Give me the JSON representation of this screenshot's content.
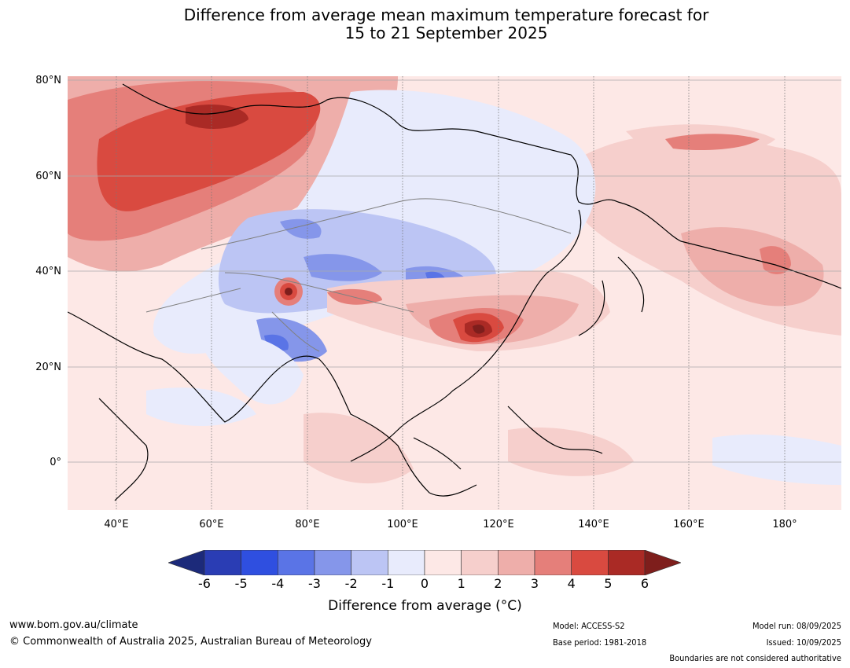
{
  "title_line1": "Difference from average mean maximum temperature forecast for",
  "title_line2": "15 to 21 September 2025",
  "lat_labels": [
    "80°N",
    "60°N",
    "40°N",
    "20°N",
    "0°"
  ],
  "lon_labels": [
    "40°E",
    "60°E",
    "80°E",
    "100°E",
    "120°E",
    "140°E",
    "160°E",
    "180°"
  ],
  "colorbar": {
    "ticks": [
      "-6",
      "-5",
      "-4",
      "-3",
      "-2",
      "-1",
      "0",
      "1",
      "2",
      "3",
      "4",
      "5",
      "6"
    ],
    "label": "Difference from average (°C)",
    "colors": [
      "#1c2a7a",
      "#2a3db4",
      "#2f4fe0",
      "#5a74e6",
      "#8596ea",
      "#bcc5f4",
      "#e8ebfc",
      "#fde8e6",
      "#f6cfcc",
      "#eeaeaa",
      "#e57f7a",
      "#d94a40",
      "#aa2a25",
      "#7e1e1c"
    ]
  },
  "footer": {
    "website": "www.bom.gov.au/climate",
    "copyright": "© Commonwealth of Australia 2025, Australian Bureau of Meteorology",
    "model": "Model: ACCESS-S2",
    "base_period": "Base period: 1981-2018",
    "model_run": "Model run: 08/09/2025",
    "issued": "Issued: 10/09/2025",
    "boundaries": "Boundaries are not considered authoritative"
  }
}
